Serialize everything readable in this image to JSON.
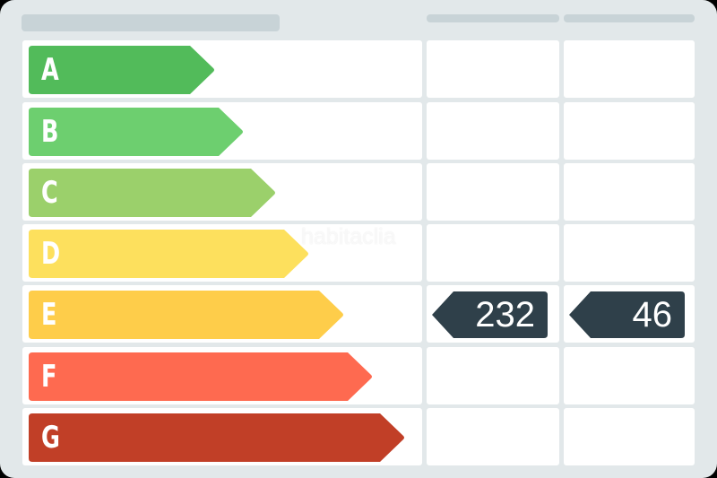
{
  "ratings": [
    {
      "letter": "A",
      "color": "#52bb5a"
    },
    {
      "letter": "B",
      "color": "#6dcf6f"
    },
    {
      "letter": "C",
      "color": "#9bd06b"
    },
    {
      "letter": "D",
      "color": "#fde05d"
    },
    {
      "letter": "E",
      "color": "#fecd4a"
    },
    {
      "letter": "F",
      "color": "#fe6a50"
    },
    {
      "letter": "G",
      "color": "#c13f27"
    }
  ],
  "current_rating": "E",
  "values": {
    "consumption": "232",
    "emissions": "46"
  },
  "badge_color": "#2f404a",
  "watermark": "habitaclia"
}
